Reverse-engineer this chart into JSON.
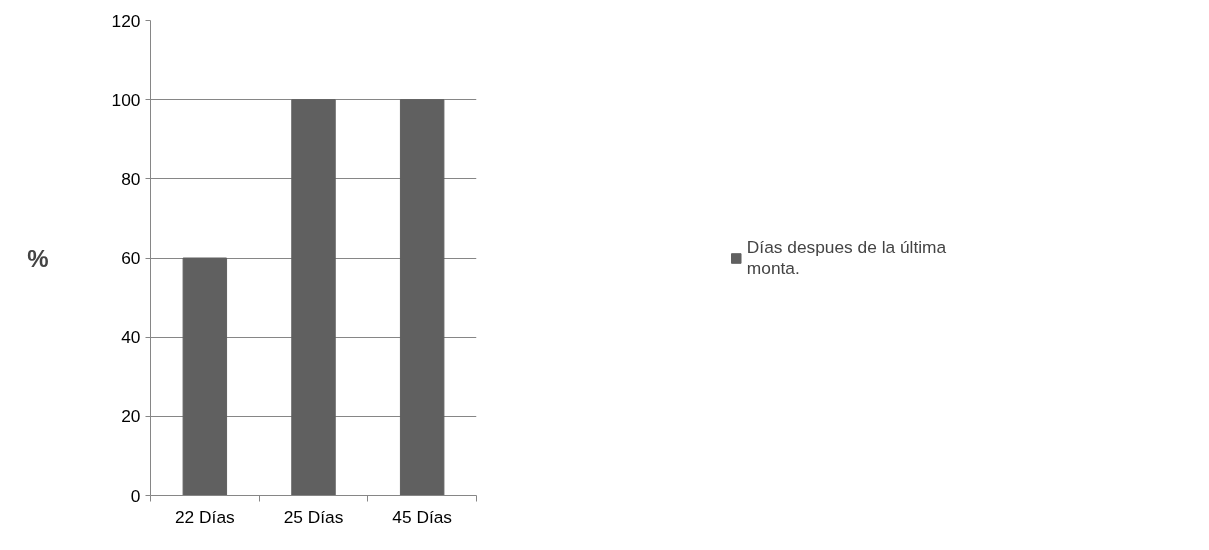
{
  "chart_data": {
    "type": "bar",
    "ylabel": "%",
    "categories": [
      "22 Días",
      "25 Días",
      "45 Días"
    ],
    "series": [
      {
        "name": "Días despues de la última monta.",
        "color": "#606060",
        "values": [
          60,
          100,
          100
        ]
      }
    ],
    "ylim": [
      0,
      120
    ],
    "yticks": [
      0,
      20,
      40,
      60,
      80,
      100,
      120
    ],
    "grid": "y",
    "legend": "right"
  }
}
